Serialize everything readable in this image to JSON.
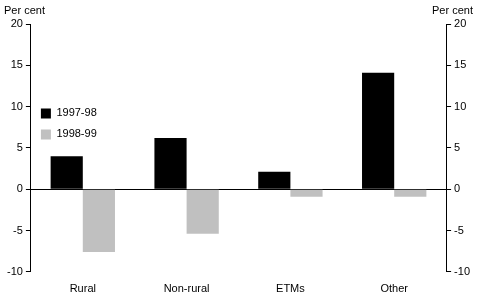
{
  "chart_data": {
    "type": "bar",
    "ylabel": "Per cent",
    "y2label": "Per cent",
    "categories": [
      "Rural",
      "Non-rural",
      "ETMs",
      "Other"
    ],
    "series": [
      {
        "name": "1997-98",
        "color": "#000000",
        "values": [
          4.0,
          6.2,
          2.1,
          14.1
        ]
      },
      {
        "name": "1998-99",
        "color": "#c0c0c0",
        "values": [
          -7.6,
          -5.4,
          -0.9,
          -0.9
        ]
      }
    ],
    "ylim": [
      -10,
      20
    ],
    "yticks": [
      -10,
      -5,
      0,
      5,
      10,
      15,
      20
    ],
    "y2lim": [
      -10,
      20
    ],
    "y2ticks": [
      -10,
      -5,
      0,
      5,
      10,
      15,
      20
    ],
    "grid": false,
    "legend": "top"
  }
}
